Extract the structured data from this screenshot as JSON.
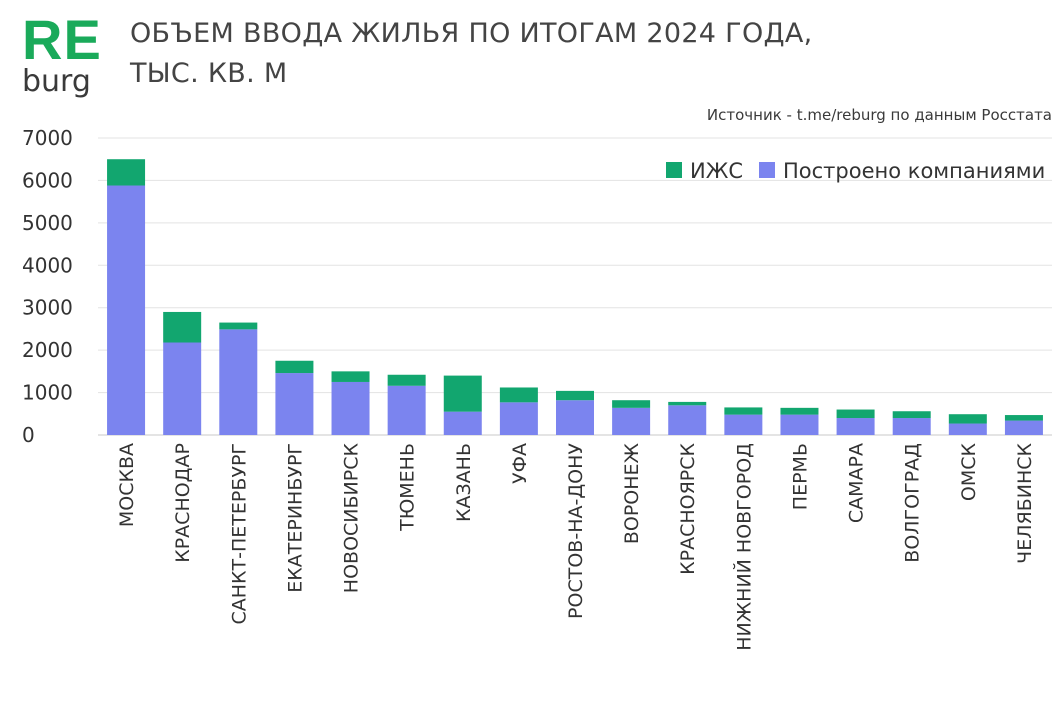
{
  "logo": {
    "re": "RE",
    "burg": "burg"
  },
  "title_line1": "ОБЪЕМ ВВОДА ЖИЛЬЯ ПО ИТОГАМ 2024 ГОДА,",
  "title_line2": "ТЫС. КВ. М",
  "source": "Источник - t.me/reburg по данным Росстата",
  "colors": {
    "logo": "#1aaa5a",
    "izhs": "#12a66f",
    "companies": "#7b84ef",
    "grid": "#e3e3e3",
    "axis": "#c8c8c8"
  },
  "chart_data": {
    "type": "bar",
    "stacked": true,
    "title": "ОБЪЕМ ВВОДА ЖИЛЬЯ ПО ИТОГАМ 2024 ГОДА, ТЫС. КВ. М",
    "xlabel": "",
    "ylabel": "",
    "ylim": [
      0,
      7000
    ],
    "yticks": [
      0,
      1000,
      2000,
      3000,
      4000,
      5000,
      6000,
      7000
    ],
    "grid": true,
    "legend_position": "top-right",
    "categories": [
      "МОСКВА",
      "КРАСНОДАР",
      "САНКТ-ПЕТЕРБУРГ",
      "ЕКАТЕРИНБУРГ",
      "НОВОСИБИРСК",
      "ТЮМЕНЬ",
      "КАЗАНЬ",
      "УФА",
      "РОСТОВ-НА-ДОНУ",
      "ВОРОНЕЖ",
      "КРАСНОЯРСК",
      "НИЖНИЙ НОВГОРОД",
      "ПЕРМЬ",
      "САМАРА",
      "ВОЛГОГРАД",
      "ОМСК",
      "ЧЕЛЯБИНСК"
    ],
    "series": [
      {
        "name": "Построено компаниями",
        "color": "#7b84ef",
        "values": [
          5880,
          2180,
          2490,
          1460,
          1250,
          1160,
          550,
          770,
          820,
          640,
          700,
          480,
          480,
          400,
          400,
          270,
          340
        ]
      },
      {
        "name": "ИЖС",
        "color": "#12a66f",
        "values": [
          620,
          720,
          160,
          290,
          250,
          260,
          850,
          350,
          220,
          180,
          80,
          170,
          160,
          200,
          160,
          220,
          130
        ]
      }
    ],
    "legend_order": [
      "ИЖС",
      "Построено компаниями"
    ]
  }
}
